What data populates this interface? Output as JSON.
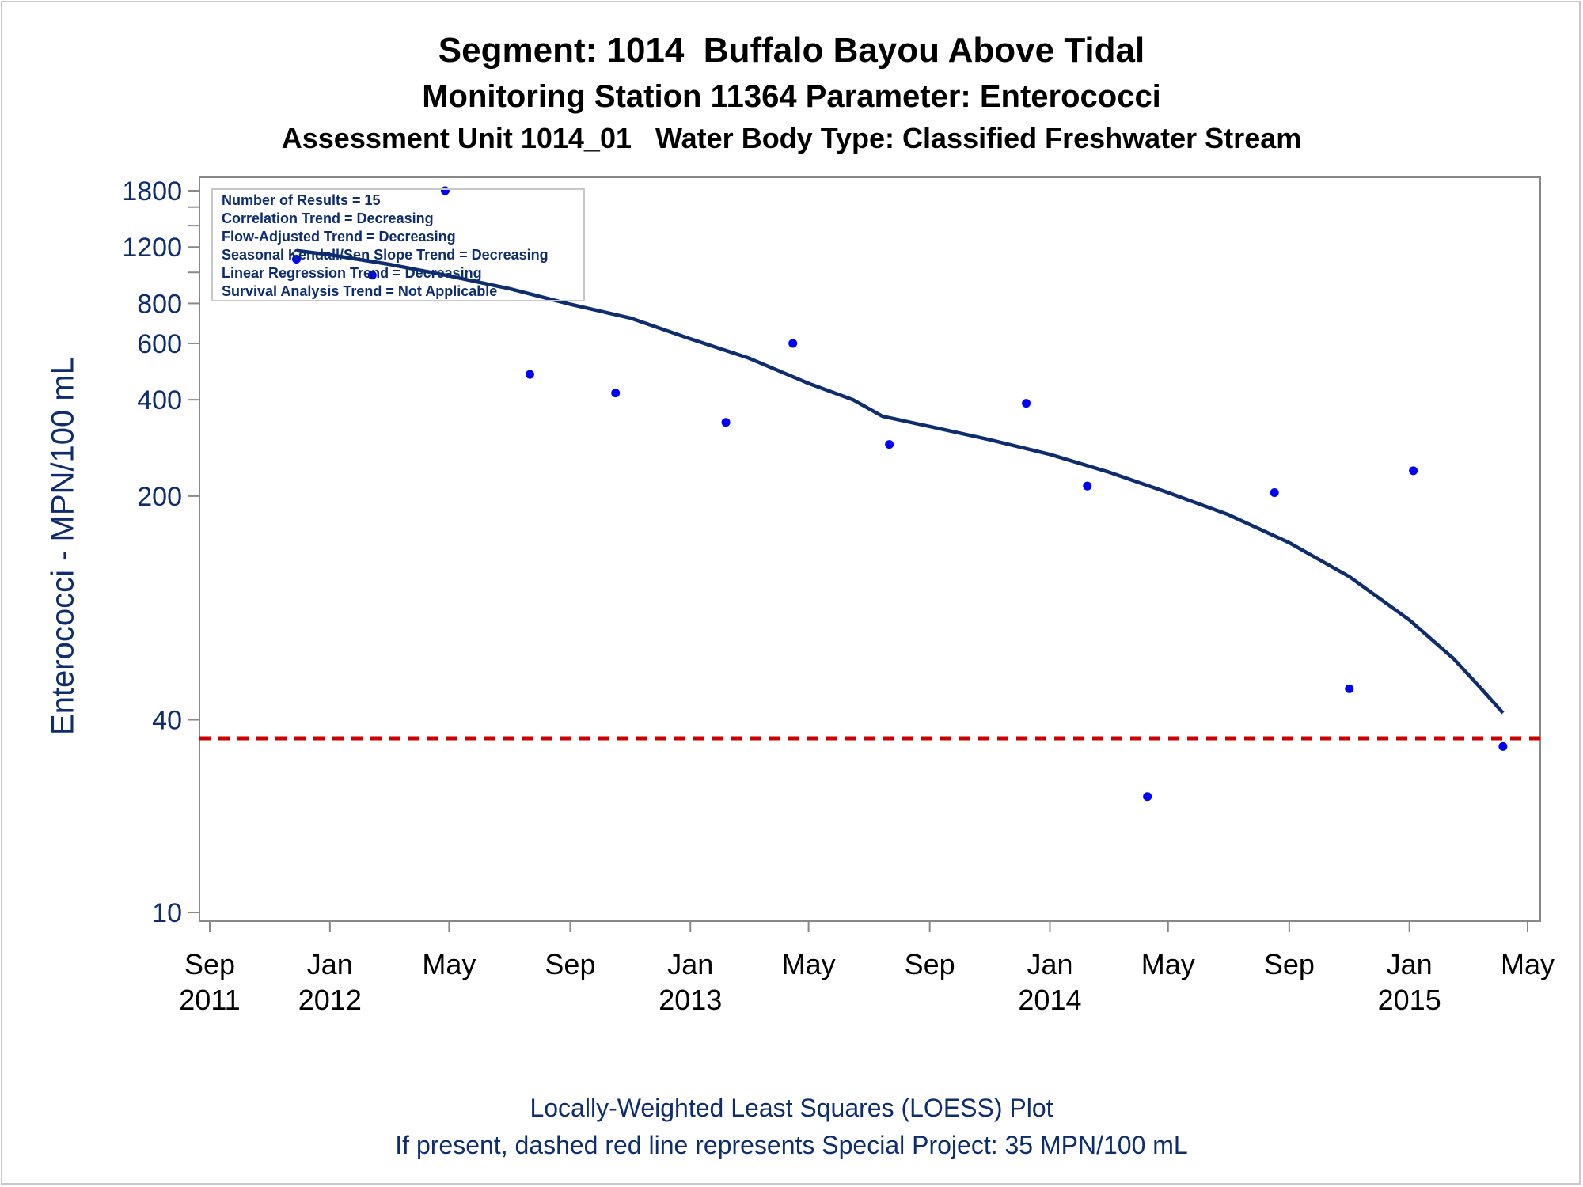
{
  "titles": {
    "line1": "Segment: 1014  Buffalo Bayou Above Tidal",
    "line2": "Monitoring Station 11364 Parameter: Enterococci",
    "line3": "Assessment Unit 1014_01   Water Body Type: Classified Freshwater Stream"
  },
  "footnotes": {
    "line1": "Locally-Weighted Least Squares (LOESS) Plot",
    "line2": "If present, dashed red line represents Special Project: 35 MPN/100 mL"
  },
  "stats_box": [
    "Number of Results = 15",
    "Correlation Trend = Decreasing",
    "Flow-Adjusted Trend = Decreasing",
    "Seasonal Kendall/Sen Slope Trend = Decreasing",
    "Linear Regression Trend = Decreasing",
    "Survival Analysis Trend = Not Applicable"
  ],
  "chart_data": {
    "type": "scatter",
    "ylabel": "Enterococci - MPN/100 mL",
    "yscale": "log",
    "ylim": [
      10,
      1800
    ],
    "xlim": [
      "2011-09-01",
      "2015-05-01"
    ],
    "y_ticks": [
      {
        "value": 10,
        "label": "10"
      },
      {
        "value": 40,
        "label": "40"
      },
      {
        "value": 200,
        "label": "200"
      },
      {
        "value": 400,
        "label": "400"
      },
      {
        "value": 600,
        "label": "600"
      },
      {
        "value": 800,
        "label": "800"
      },
      {
        "value": 1200,
        "label": "1200"
      },
      {
        "value": 1800,
        "label": "1800"
      }
    ],
    "y_minor_ticks": [
      1000,
      1400,
      1600
    ],
    "x_ticks": [
      {
        "date": "2011-09-01",
        "month": "Sep",
        "year": "2011"
      },
      {
        "date": "2012-01-01",
        "month": "Jan",
        "year": "2012"
      },
      {
        "date": "2012-05-01",
        "month": "May",
        "year": ""
      },
      {
        "date": "2012-09-01",
        "month": "Sep",
        "year": ""
      },
      {
        "date": "2013-01-01",
        "month": "Jan",
        "year": "2013"
      },
      {
        "date": "2013-05-01",
        "month": "May",
        "year": ""
      },
      {
        "date": "2013-09-01",
        "month": "Sep",
        "year": ""
      },
      {
        "date": "2014-01-01",
        "month": "Jan",
        "year": "2014"
      },
      {
        "date": "2014-05-01",
        "month": "May",
        "year": ""
      },
      {
        "date": "2014-09-01",
        "month": "Sep",
        "year": ""
      },
      {
        "date": "2015-01-01",
        "month": "Jan",
        "year": "2015"
      },
      {
        "date": "2015-05-01",
        "month": "May",
        "year": ""
      }
    ],
    "points": [
      {
        "x": "2011-11-28",
        "y": 1100
      },
      {
        "x": "2012-02-13",
        "y": 980
      },
      {
        "x": "2012-04-27",
        "y": 1800
      },
      {
        "x": "2012-07-22",
        "y": 480
      },
      {
        "x": "2012-10-17",
        "y": 420
      },
      {
        "x": "2013-02-06",
        "y": 340
      },
      {
        "x": "2013-04-15",
        "y": 600
      },
      {
        "x": "2013-07-22",
        "y": 290
      },
      {
        "x": "2013-12-08",
        "y": 390
      },
      {
        "x": "2014-02-08",
        "y": 215
      },
      {
        "x": "2014-04-10",
        "y": 23
      },
      {
        "x": "2014-08-17",
        "y": 205
      },
      {
        "x": "2014-11-01",
        "y": 50
      },
      {
        "x": "2015-01-05",
        "y": 240
      },
      {
        "x": "2015-04-06",
        "y": 33
      }
    ],
    "loess_curve": [
      {
        "x": "2011-11-28",
        "y": 1170
      },
      {
        "x": "2012-01-01",
        "y": 1135
      },
      {
        "x": "2012-03-01",
        "y": 1060
      },
      {
        "x": "2012-05-01",
        "y": 975
      },
      {
        "x": "2012-07-01",
        "y": 890
      },
      {
        "x": "2012-09-01",
        "y": 795
      },
      {
        "x": "2012-11-01",
        "y": 720
      },
      {
        "x": "2013-01-01",
        "y": 620
      },
      {
        "x": "2013-03-01",
        "y": 540
      },
      {
        "x": "2013-05-01",
        "y": 450
      },
      {
        "x": "2013-06-15",
        "y": 400
      },
      {
        "x": "2013-07-15",
        "y": 355
      },
      {
        "x": "2013-09-01",
        "y": 330
      },
      {
        "x": "2013-11-01",
        "y": 300
      },
      {
        "x": "2014-01-01",
        "y": 270
      },
      {
        "x": "2014-03-01",
        "y": 238
      },
      {
        "x": "2014-05-01",
        "y": 205
      },
      {
        "x": "2014-07-01",
        "y": 175
      },
      {
        "x": "2014-09-01",
        "y": 143
      },
      {
        "x": "2014-11-01",
        "y": 112
      },
      {
        "x": "2015-01-01",
        "y": 82
      },
      {
        "x": "2015-02-15",
        "y": 62
      },
      {
        "x": "2015-03-15",
        "y": 50
      },
      {
        "x": "2015-04-06",
        "y": 42
      }
    ],
    "reference_line": {
      "value": 35,
      "style": "dashed",
      "color": "#cc0000"
    },
    "colors": {
      "points": "#0000ff",
      "loess": "#0d2d6e",
      "text": "#0d2d6e",
      "axis": "#888888"
    }
  }
}
